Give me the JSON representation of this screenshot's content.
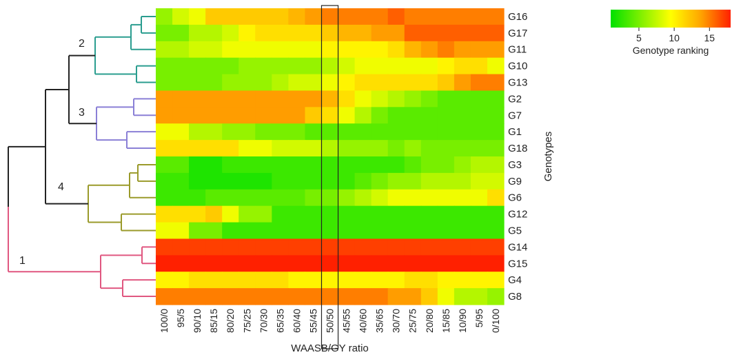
{
  "chart_data": {
    "type": "heatmap",
    "title": "",
    "xlabel": "WAASB/GY ratio",
    "ylabel": "Genotypes",
    "x": [
      "100/0",
      "95/5",
      "90/10",
      "85/15",
      "80/20",
      "75/25",
      "70/30",
      "65/35",
      "60/40",
      "55/45",
      "50/50",
      "45/55",
      "40/60",
      "35/65",
      "30/70",
      "25/75",
      "20/80",
      "15/85",
      "10/90",
      "5/95",
      "0/100"
    ],
    "highlighted_column": "50/50",
    "y": [
      "G16",
      "G17",
      "G11",
      "G10",
      "G13",
      "G2",
      "G7",
      "G1",
      "G18",
      "G3",
      "G9",
      "G6",
      "G12",
      "G5",
      "G14",
      "G15",
      "G4",
      "G8"
    ],
    "values": [
      [
        6,
        8,
        9,
        12,
        12,
        12,
        12,
        12,
        13,
        14,
        15,
        15,
        15,
        15,
        16,
        15,
        15,
        15,
        15,
        15,
        15
      ],
      [
        5,
        5,
        7,
        7,
        8,
        10,
        11,
        11,
        11,
        11,
        12,
        13,
        13,
        14,
        14,
        16,
        16,
        16,
        16,
        16,
        16
      ],
      [
        7,
        7,
        8,
        8,
        9,
        9,
        9,
        9,
        9,
        9,
        10,
        10,
        10,
        10,
        11,
        13,
        14,
        15,
        14,
        14,
        14
      ],
      [
        5,
        5,
        5,
        5,
        5,
        6,
        6,
        6,
        6,
        6,
        7,
        8,
        9,
        9,
        9,
        9,
        9,
        10,
        11,
        11,
        9
      ],
      [
        5,
        5,
        5,
        5,
        6,
        6,
        6,
        7,
        8,
        8,
        9,
        10,
        11,
        11,
        11,
        11,
        11,
        12,
        14,
        15,
        15
      ],
      [
        14,
        14,
        14,
        14,
        14,
        14,
        14,
        14,
        14,
        14,
        13,
        11,
        9,
        8,
        7,
        6,
        5,
        4,
        4,
        4,
        4
      ],
      [
        14,
        14,
        14,
        14,
        14,
        14,
        14,
        14,
        14,
        12,
        11,
        9,
        7,
        5,
        4,
        4,
        4,
        4,
        4,
        4,
        4
      ],
      [
        9,
        9,
        7,
        7,
        6,
        6,
        5,
        5,
        5,
        4,
        4,
        4,
        4,
        4,
        4,
        4,
        4,
        4,
        4,
        4,
        4
      ],
      [
        11,
        11,
        11,
        11,
        11,
        9,
        9,
        8,
        8,
        8,
        7,
        6,
        6,
        6,
        5,
        6,
        5,
        5,
        5,
        5,
        5
      ],
      [
        4,
        4,
        2,
        2,
        3,
        3,
        3,
        3,
        3,
        3,
        3,
        3,
        3,
        3,
        3,
        4,
        5,
        5,
        6,
        7,
        7
      ],
      [
        3,
        3,
        2,
        2,
        2,
        2,
        2,
        3,
        3,
        3,
        3,
        3,
        4,
        5,
        6,
        6,
        7,
        7,
        7,
        8,
        8
      ],
      [
        3,
        3,
        3,
        4,
        4,
        4,
        4,
        4,
        4,
        5,
        5,
        6,
        7,
        8,
        9,
        9,
        9,
        9,
        9,
        9,
        11
      ],
      [
        11,
        11,
        11,
        12,
        9,
        6,
        6,
        3,
        3,
        3,
        3,
        3,
        3,
        3,
        3,
        3,
        3,
        3,
        3,
        3,
        3
      ],
      [
        9,
        9,
        5,
        5,
        3,
        3,
        3,
        3,
        3,
        3,
        3,
        3,
        3,
        3,
        3,
        3,
        3,
        3,
        3,
        3,
        3
      ],
      [
        17,
        17,
        17,
        17,
        17,
        17,
        17,
        17,
        17,
        17,
        17,
        17,
        17,
        17,
        17,
        17,
        17,
        17,
        17,
        17,
        17
      ],
      [
        18,
        18,
        18,
        18,
        18,
        18,
        18,
        18,
        18,
        18,
        18,
        18,
        18,
        18,
        18,
        18,
        18,
        18,
        18,
        18,
        18
      ],
      [
        10,
        10,
        11,
        11,
        11,
        11,
        11,
        11,
        10,
        10,
        10,
        10,
        10,
        10,
        10,
        11,
        11,
        10,
        10,
        10,
        10
      ],
      [
        15,
        15,
        15,
        15,
        15,
        15,
        15,
        15,
        15,
        15,
        15,
        15,
        15,
        15,
        14,
        14,
        12,
        9,
        7,
        7,
        6
      ]
    ],
    "colorbar": {
      "label": "Genotype ranking",
      "ticks": [
        5,
        10,
        15
      ],
      "range": [
        1,
        18
      ],
      "colors": [
        "#00e000",
        "#80f000",
        "#ffff00",
        "#ffa500",
        "#ff2000"
      ]
    },
    "dendrogram": {
      "cluster_labels": [
        "1",
        "2",
        "3",
        "4"
      ],
      "cluster_colors": [
        "#e05780",
        "#2a9d8f",
        "#8a7fd6",
        "#9a9a2a"
      ],
      "root_color": "#222222"
    }
  }
}
